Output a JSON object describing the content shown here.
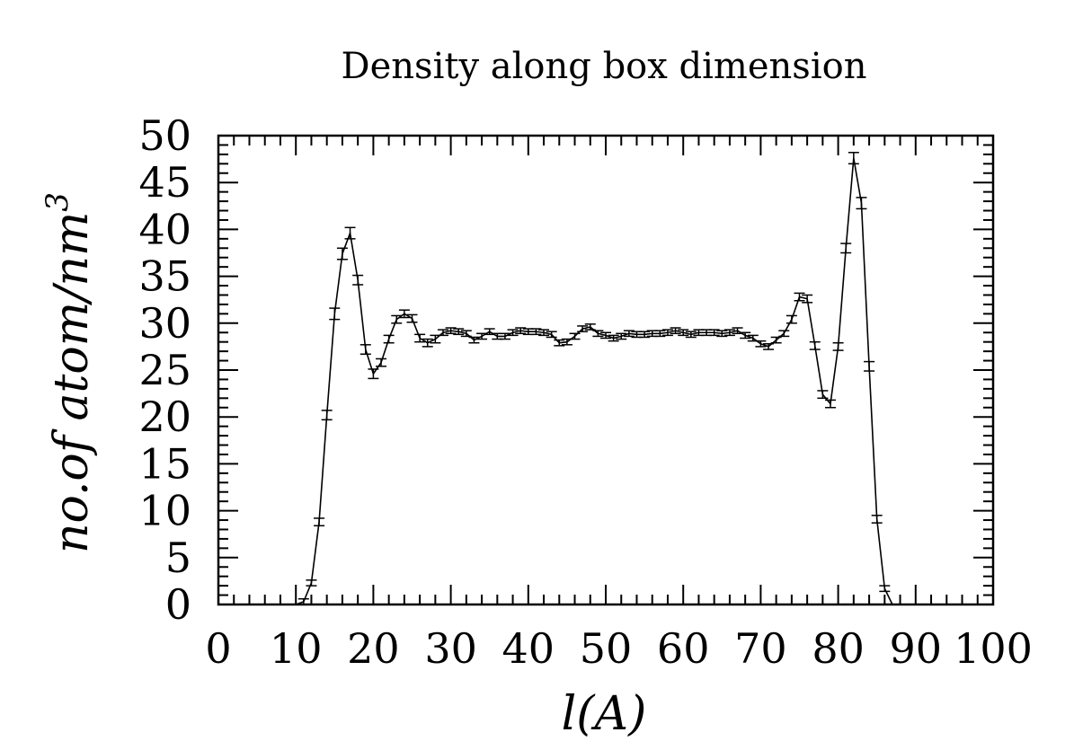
{
  "chart_data": {
    "type": "line",
    "title": "Density along box dimension",
    "xlabel": "l(A)",
    "ylabel": "no.of atom/nm",
    "ylabel_sup": "3",
    "xlim": [
      0,
      100
    ],
    "ylim": [
      0,
      50
    ],
    "x_ticks": [
      0,
      10,
      20,
      30,
      40,
      50,
      60,
      70,
      80,
      90,
      100
    ],
    "y_ticks": [
      0,
      5,
      10,
      15,
      20,
      25,
      30,
      35,
      40,
      45,
      50
    ],
    "x_minor_step": 2,
    "y_minor_step": 1,
    "grid": false,
    "legend": false,
    "color": "#000000",
    "series": [
      {
        "x": [
          10,
          11,
          12,
          13,
          14,
          15,
          16,
          17,
          18,
          19,
          20,
          21,
          22,
          23,
          24,
          25,
          26,
          27,
          28,
          29,
          30,
          31,
          32,
          33,
          34,
          35,
          36,
          37,
          38,
          39,
          40,
          41,
          42,
          43,
          44,
          45,
          46,
          47,
          48,
          49,
          50,
          51,
          52,
          53,
          54,
          55,
          56,
          57,
          58,
          59,
          60,
          61,
          62,
          63,
          64,
          65,
          66,
          67,
          68,
          69,
          70,
          71,
          72,
          73,
          74,
          75,
          76,
          77,
          78,
          79,
          80,
          81,
          82,
          83,
          84,
          85,
          86,
          87
        ],
        "y": [
          0,
          0.3,
          2.3,
          8.8,
          20.2,
          31,
          37.4,
          39.6,
          34.6,
          27.2,
          24.6,
          25.8,
          28.3,
          30.4,
          31,
          30.5,
          28.4,
          27.9,
          28.3,
          29,
          29.2,
          29.1,
          28.9,
          28.2,
          28.6,
          29.1,
          28.6,
          28.6,
          29,
          29.2,
          29.1,
          29.1,
          29,
          28.8,
          27.9,
          28,
          28.6,
          29.4,
          29.6,
          28.9,
          28.7,
          28.4,
          28.6,
          28.9,
          28.8,
          28.8,
          28.9,
          28.9,
          29,
          29.2,
          29,
          28.8,
          29,
          29,
          29,
          28.9,
          29,
          29.2,
          28.7,
          28.4,
          27.8,
          27.5,
          28.2,
          28.9,
          30.4,
          32.8,
          32.6,
          27.6,
          22.4,
          21.4,
          27.5,
          38,
          47.6,
          42.8,
          25.4,
          9.1,
          1.7,
          0
        ],
        "err": [
          0,
          0.3,
          0.3,
          0.4,
          0.5,
          0.6,
          0.6,
          0.6,
          0.5,
          0.5,
          0.5,
          0.4,
          0.4,
          0.4,
          0.4,
          0.4,
          0.4,
          0.4,
          0.4,
          0.3,
          0.3,
          0.3,
          0.3,
          0.3,
          0.3,
          0.3,
          0.3,
          0.3,
          0.3,
          0.3,
          0.3,
          0.3,
          0.3,
          0.3,
          0.3,
          0.3,
          0.3,
          0.3,
          0.3,
          0.3,
          0.3,
          0.3,
          0.3,
          0.3,
          0.3,
          0.3,
          0.3,
          0.3,
          0.3,
          0.3,
          0.3,
          0.3,
          0.3,
          0.3,
          0.3,
          0.3,
          0.3,
          0.3,
          0.3,
          0.3,
          0.3,
          0.3,
          0.3,
          0.3,
          0.4,
          0.4,
          0.4,
          0.4,
          0.4,
          0.4,
          0.4,
          0.5,
          0.6,
          0.6,
          0.5,
          0.4,
          0.3,
          0
        ]
      }
    ]
  }
}
